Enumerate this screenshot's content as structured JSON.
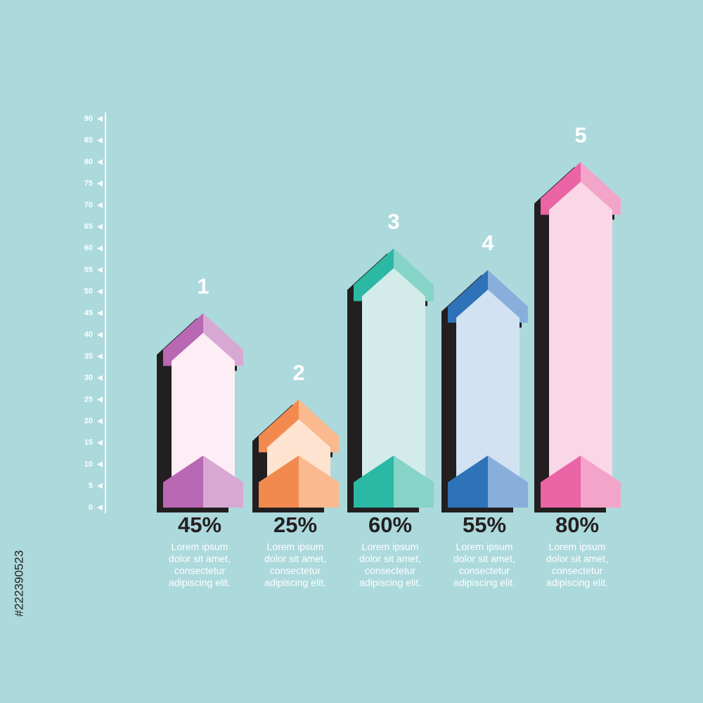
{
  "chart_data": {
    "type": "arrow-bar",
    "categories": [
      "1",
      "2",
      "3",
      "4",
      "5"
    ],
    "values": [
      45,
      25,
      60,
      55,
      80
    ],
    "value_labels": [
      "45%",
      "25%",
      "60%",
      "55%",
      "80%"
    ],
    "descriptions": [
      [
        "Lorem ipsum",
        "dolor sit amet,",
        "consectetur",
        "adipiscing elit."
      ],
      [
        "Lorem ipsum",
        "dolor sit amet,",
        "consectetur",
        "adipiscing elit."
      ],
      [
        "Lorem ipsum",
        "dolor sit amet,",
        "consectetur",
        "adipiscing elit."
      ],
      [
        "Lorem ipsum",
        "dolor sit amet,",
        "consectetur",
        "adipiscing elit."
      ],
      [
        "Lorem ipsum",
        "dolor sit amet,",
        "consectetur",
        "adipiscing elit."
      ]
    ],
    "colors": [
      "#b968b4",
      "#f28a4f",
      "#2bb8a4",
      "#2e73b8",
      "#ea64a6"
    ],
    "light_colors": [
      "#d8a8d4",
      "#fbb98f",
      "#86d3c8",
      "#88afdc",
      "#f3a5c9"
    ],
    "pale_colors": [
      "#fdeef5",
      "#fde3d0",
      "#d3ecea",
      "#d2e2f2",
      "#fad7e6"
    ],
    "ylim": [
      0,
      90
    ],
    "yticks": [
      0,
      5,
      10,
      15,
      20,
      25,
      30,
      35,
      40,
      45,
      50,
      55,
      60,
      65,
      70,
      75,
      80,
      85,
      90
    ]
  },
  "watermark_id": "#222390523"
}
